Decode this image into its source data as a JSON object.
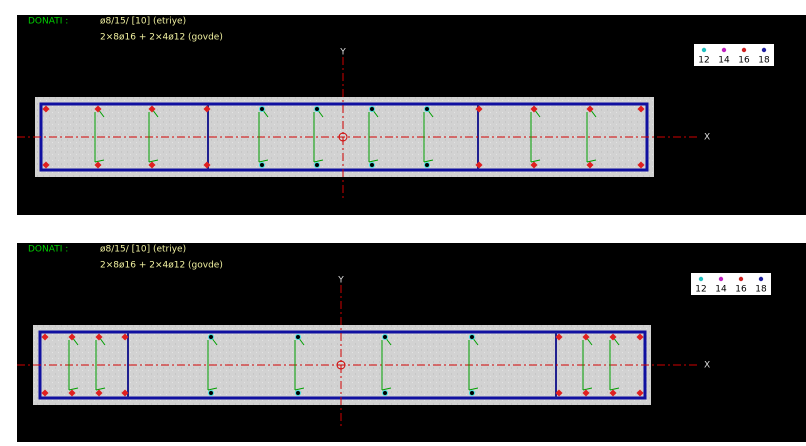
{
  "panels": [
    {
      "label": "DONATI :",
      "stirrup": "ø8/15/ [10] (etriye)",
      "bars": "2×8ø16 + 2×4ø12 (govde)",
      "axis_y": "Y",
      "axis_x": "X",
      "legend": [
        "12",
        "14",
        "16",
        "18"
      ]
    },
    {
      "label": "DONATI :",
      "stirrup": "ø8/15/ [10] (etriye)",
      "bars": "2×8ø16 + 2×4ø12 (govde)",
      "axis_y": "Y",
      "axis_x": "X",
      "legend": [
        "12",
        "14",
        "16",
        "18"
      ]
    }
  ]
}
